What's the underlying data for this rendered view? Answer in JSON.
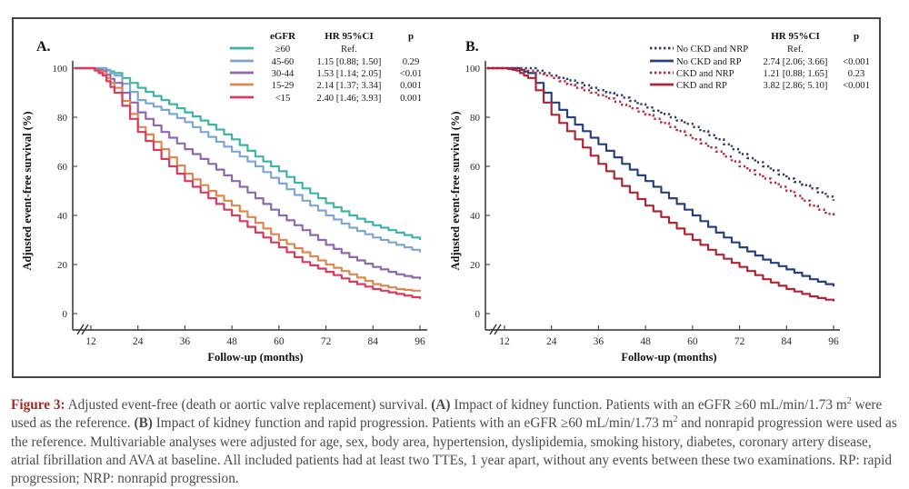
{
  "figure": {
    "panels": [
      "A.",
      "B."
    ]
  },
  "chart_data": [
    {
      "type": "line",
      "panel_label": "A.",
      "xlabel": "Follow-up (months)",
      "ylabel": "Adjusted event-free survival (%)",
      "xlim": [
        12,
        96
      ],
      "ylim": [
        0,
        100
      ],
      "x_ticks": [
        12,
        24,
        36,
        48,
        60,
        72,
        84,
        96
      ],
      "y_ticks": [
        0,
        20,
        40,
        60,
        80,
        100
      ],
      "axis_break": true,
      "legend_headers": {
        "group": "eGFR",
        "hr": "HR 95%CI",
        "p": "p"
      },
      "x": [
        12,
        15,
        18,
        24,
        30,
        36,
        42,
        48,
        54,
        60,
        66,
        72,
        78,
        84,
        90,
        96
      ],
      "series": [
        {
          "name": "≥60",
          "hr": "Ref.",
          "p": "",
          "color": "#3db5a5",
          "line": "solid",
          "values": [
            100,
            100,
            98,
            92,
            87,
            82,
            77,
            71,
            64,
            58,
            51,
            45,
            40,
            36,
            33,
            30
          ]
        },
        {
          "name": "45-60",
          "hr": "1.15 [0.88; 1.50]",
          "p": "0.29",
          "color": "#7da7d3",
          "line": "solid",
          "values": [
            100,
            100,
            97,
            87,
            83,
            78,
            72,
            66,
            60,
            53,
            46,
            40,
            35,
            31,
            28,
            25
          ]
        },
        {
          "name": "30-44",
          "hr": "1.53 [1.14; 2.05]",
          "p": "<0.01",
          "color": "#8d67af",
          "line": "solid",
          "values": [
            100,
            99,
            94,
            82,
            74,
            67,
            61,
            54,
            47,
            40,
            34,
            28,
            23,
            19,
            16,
            14
          ]
        },
        {
          "name": "15-29",
          "hr": "2.14 [1.37; 3.34]",
          "p": "0.001",
          "color": "#e0874f",
          "line": "solid",
          "values": [
            100,
            98,
            92,
            76,
            67,
            57,
            50,
            44,
            37,
            30,
            25,
            20,
            16,
            12,
            10,
            9
          ]
        },
        {
          "name": "<15",
          "hr": "2.40 [1.46; 3.93]",
          "p": "0.001",
          "color": "#d63b60",
          "line": "solid",
          "values": [
            100,
            97,
            90,
            74,
            63,
            54,
            47,
            40,
            33,
            27,
            21,
            17,
            13,
            10,
            8,
            6
          ]
        }
      ]
    },
    {
      "type": "line",
      "panel_label": "B.",
      "xlabel": "Follow-up (months)",
      "ylabel": "Adjusted event-free survival (%)",
      "xlim": [
        12,
        96
      ],
      "ylim": [
        0,
        100
      ],
      "x_ticks": [
        12,
        24,
        36,
        48,
        60,
        72,
        84,
        96
      ],
      "y_ticks": [
        0,
        20,
        40,
        60,
        80,
        100
      ],
      "axis_break": true,
      "legend_headers": {
        "group": "",
        "hr": "HR 95%CI",
        "p": "p"
      },
      "x": [
        12,
        15,
        18,
        24,
        30,
        36,
        42,
        48,
        54,
        60,
        66,
        72,
        78,
        84,
        90,
        96
      ],
      "series": [
        {
          "name": "No CKD and NRP",
          "hr": "Ref.",
          "p": "",
          "color": "#2c3a72",
          "line": "dotted",
          "values": [
            100,
            100,
            100,
            97,
            94,
            91,
            88,
            84,
            80,
            76,
            71,
            65,
            60,
            55,
            51,
            46
          ]
        },
        {
          "name": "No CKD and RP",
          "hr": "2.74 [2.06; 3.66]",
          "p": "<0.001",
          "color": "#27407e",
          "line": "solid",
          "values": [
            100,
            100,
            98,
            86,
            77,
            69,
            61,
            54,
            47,
            40,
            33,
            27,
            22,
            18,
            14,
            11
          ]
        },
        {
          "name": "CKD and NRP",
          "hr": "1.21 [0.88; 1.65]",
          "p": "0.23",
          "color": "#b52b3d",
          "line": "dotted",
          "values": [
            100,
            100,
            99,
            96,
            92,
            89,
            85,
            81,
            76,
            71,
            66,
            60,
            55,
            50,
            44,
            39
          ]
        },
        {
          "name": "CKD and RP",
          "hr": "3.82 [2.86; 5.10]",
          "p": "<0.001",
          "color": "#b02433",
          "line": "solid",
          "values": [
            100,
            99,
            96,
            81,
            71,
            61,
            52,
            44,
            37,
            30,
            24,
            19,
            14,
            10,
            7,
            5
          ]
        }
      ]
    }
  ],
  "caption": {
    "label_color": "#9e2b25",
    "text_color": "#4c4c4c",
    "segments": [
      {
        "text": "Figure 3:",
        "style": "figure-label"
      },
      {
        "text": " Adjusted event-free (death or aortic valve replacement) survival. ",
        "style": "normal"
      },
      {
        "text": "(A)",
        "style": "bold"
      },
      {
        "text": " Impact of kidney function. Patients with an eGFR ≥60 mL/min/1.73 m",
        "style": "normal"
      },
      {
        "text": "2",
        "style": "superscript"
      },
      {
        "text": " were used as the reference. ",
        "style": "normal"
      },
      {
        "text": "(B)",
        "style": "bold"
      },
      {
        "text": " Impact of kidney function and rapid progression. Patients with an eGFR ≥60 mL/min/1.73 m",
        "style": "normal"
      },
      {
        "text": "2",
        "style": "superscript"
      },
      {
        "text": " and nonrapid progression were used as the reference. Multivariable analyses were adjusted for age, sex, body area, hypertension, dyslipidemia, smoking history, diabetes, coronary artery disease, atrial fibrillation and AVA at baseline. All included patients had at least two TTEs, 1 year apart, without any events between these two examinations. RP: rapid progression; NRP: nonrapid progression.",
        "style": "normal"
      }
    ]
  }
}
